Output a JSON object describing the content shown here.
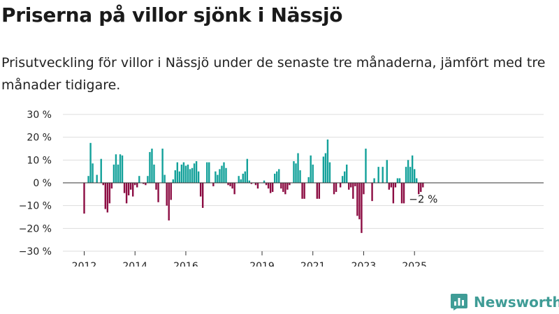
{
  "header": {
    "title": "Priserna på villor sjönk i Nässjö",
    "subtitle": "Prisutveckling för villor i Nässjö under de senaste tre månaderna, jämfört med tre månader tidigare."
  },
  "colors": {
    "positive": "#13A19A",
    "negative": "#8C0D43",
    "grid": "#dddddd",
    "axis": "#333333",
    "brand": "#3F9C96"
  },
  "chart_data": {
    "type": "bar",
    "ylim": [
      -30,
      30
    ],
    "y_ticks": [
      30,
      20,
      10,
      0,
      -10,
      -20,
      -30
    ],
    "y_tick_labels": [
      "30 %",
      "20 %",
      "10 %",
      "0 %",
      "−10 %",
      "−20 %",
      "−30 %"
    ],
    "x_ticks": [
      {
        "label": "2012",
        "index": 0
      },
      {
        "label": "2014",
        "index": 24
      },
      {
        "label": "2016",
        "index": 48
      },
      {
        "label": "2019",
        "index": 84
      },
      {
        "label": "2021",
        "index": 108
      },
      {
        "label": "2023",
        "index": 132
      },
      {
        "label": "2025",
        "index": 156
      }
    ],
    "start": "2012-01",
    "frequency": "monthly",
    "values": [
      -13.5,
      0,
      3,
      17.5,
      8.5,
      0,
      3.5,
      0,
      10.5,
      -1,
      -11.5,
      -13,
      -9,
      -2.5,
      8,
      12.5,
      8,
      12.5,
      12,
      -4.5,
      -9,
      -5.5,
      -3,
      -6,
      -1,
      -2,
      3,
      0,
      -0.5,
      -1,
      3,
      13.5,
      15,
      8,
      -3,
      -8.5,
      0,
      15,
      3.5,
      -10,
      -16.5,
      -7.5,
      1.5,
      5.5,
      9,
      5,
      8,
      9,
      7.5,
      8,
      6,
      6.5,
      8.5,
      9.5,
      5,
      -6,
      -11,
      0,
      9,
      9,
      0,
      -1.5,
      5,
      3.5,
      6,
      7.5,
      9,
      6.5,
      -1,
      -1.5,
      -2.5,
      -5,
      0,
      3,
      1.5,
      4,
      5,
      10.5,
      1,
      -0.5,
      0,
      -1,
      -2.5,
      0,
      0,
      1,
      -1,
      -2.5,
      -4.5,
      -4,
      4,
      5,
      6,
      -2.5,
      -4,
      -5,
      -3,
      -1,
      0,
      9.5,
      8.5,
      13,
      5.5,
      -7,
      -7,
      0,
      2.5,
      12,
      8,
      0,
      -7,
      -7,
      0,
      11.5,
      13,
      19,
      9,
      0,
      -5,
      -4,
      0,
      -2,
      3,
      5,
      8,
      -3,
      -2,
      -7,
      -1.5,
      -14.5,
      -16,
      -22,
      -5,
      15,
      0,
      0,
      -8,
      2,
      0,
      7,
      0,
      7,
      0,
      10,
      -3,
      -2,
      -9,
      -2,
      2,
      2,
      -9,
      -9,
      7,
      10,
      7,
      12,
      6,
      2,
      -5,
      -4,
      -2
    ],
    "annotation": {
      "label": "−2 %",
      "value": -2
    }
  },
  "brand": {
    "name": "Newsworthy",
    "icon": "bar-chart-logo-icon"
  }
}
